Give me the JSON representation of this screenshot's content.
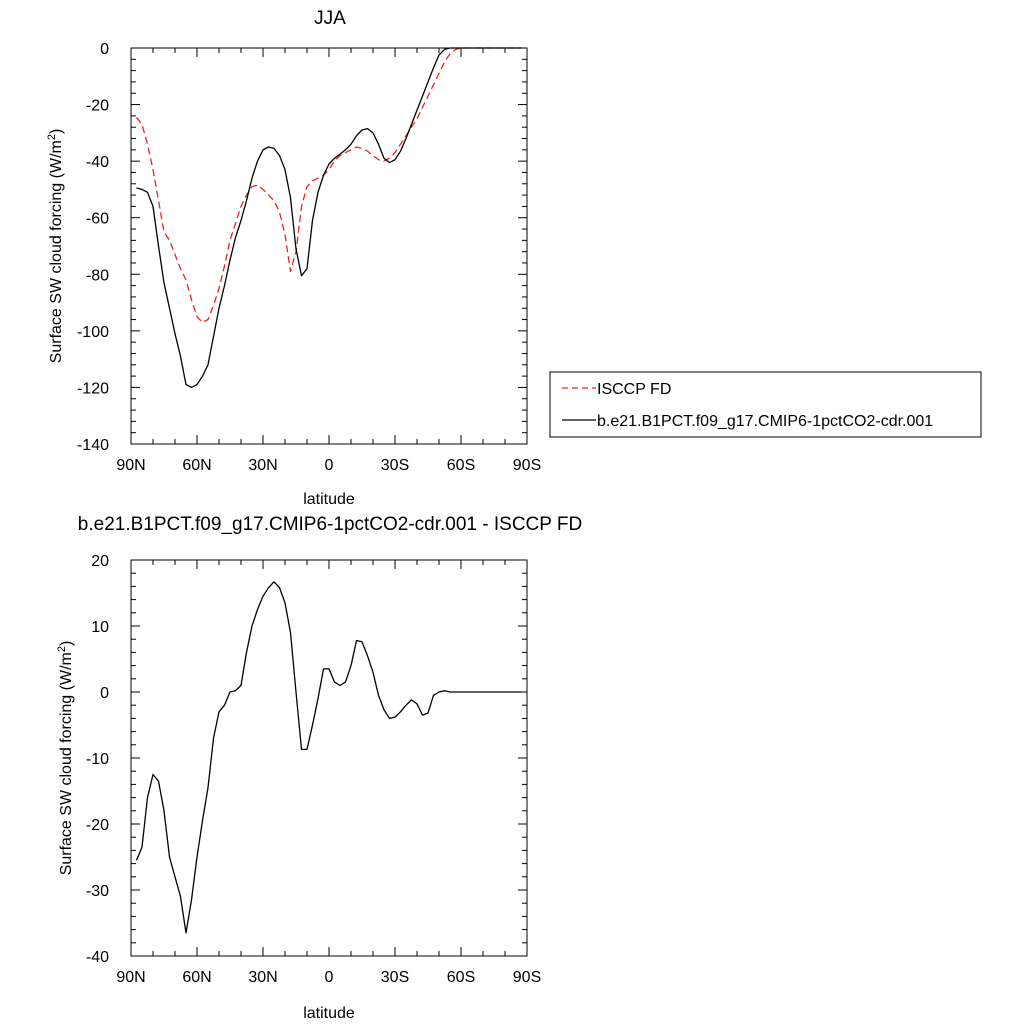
{
  "chart_data": [
    {
      "type": "line",
      "title": "JJA",
      "xlabel": "latitude",
      "ylabel": "Surface SW cloud forcing (W/m",
      "ylabel_sup": "2",
      "ylabel_tail": ")",
      "xlim": [
        90,
        -90
      ],
      "ylim": [
        -140,
        0
      ],
      "x_ticks": [
        {
          "value": 90,
          "label": "90N"
        },
        {
          "value": 60,
          "label": "60N"
        },
        {
          "value": 30,
          "label": "30N"
        },
        {
          "value": 0,
          "label": "0"
        },
        {
          "value": -30,
          "label": "30S"
        },
        {
          "value": -60,
          "label": "60S"
        },
        {
          "value": -90,
          "label": "90S"
        }
      ],
      "y_ticks": [
        0,
        -20,
        -40,
        -60,
        -80,
        -100,
        -120,
        -140
      ],
      "legend_position": "right",
      "series": [
        {
          "name": "ISCCP FD",
          "color": "#e8261d",
          "dash": true,
          "x": [
            87.5,
            85,
            82.5,
            80,
            77.5,
            75,
            72.5,
            70,
            67.5,
            65,
            62.5,
            60,
            57.5,
            55,
            52.5,
            50,
            47.5,
            45,
            42.5,
            40,
            37.5,
            35,
            32.5,
            30,
            27.5,
            25,
            22.5,
            20,
            17.5,
            15,
            12.5,
            10,
            7.5,
            5,
            2.5,
            0,
            -2.5,
            -5,
            -7.5,
            -10,
            -12.5,
            -15,
            -17.5,
            -20,
            -22.5,
            -25,
            -27.5,
            -30,
            -32.5,
            -35,
            -37.5,
            -40,
            -42.5,
            -45,
            -47.5,
            -50,
            -52.5,
            -55,
            -57.5,
            -60,
            -62.5,
            -65,
            -67.5,
            -70,
            -72.5,
            -75,
            -77.5,
            -80,
            -82.5,
            -85,
            -87.5
          ],
          "y": [
            -24.5,
            -27,
            -34,
            -43,
            -54,
            -65,
            -68,
            -73,
            -78,
            -82,
            -89,
            -95,
            -97,
            -96,
            -91,
            -85,
            -77,
            -68,
            -62,
            -56,
            -52,
            -49,
            -48.5,
            -50,
            -52,
            -54,
            -58,
            -66,
            -79,
            -72,
            -56,
            -49,
            -47,
            -46,
            -45,
            -43,
            -40,
            -38,
            -37,
            -36,
            -35,
            -35.5,
            -36.5,
            -38,
            -39.5,
            -40,
            -39,
            -37,
            -34,
            -31,
            -28,
            -25,
            -21,
            -17,
            -13,
            -9,
            -5,
            -2,
            -0.5,
            0,
            0,
            0,
            0,
            0,
            0,
            0,
            0,
            0,
            0,
            0,
            0
          ]
        },
        {
          "name": "b.e21.B1PCT.f09_g17.CMIP6-1pctCO2-cdr.001",
          "color": "#000000",
          "dash": false,
          "x": [
            87.5,
            85,
            82.5,
            80,
            77.5,
            75,
            72.5,
            70,
            67.5,
            65,
            62.5,
            60,
            57.5,
            55,
            52.5,
            50,
            47.5,
            45,
            42.5,
            40,
            37.5,
            35,
            32.5,
            30,
            27.5,
            25,
            22.5,
            20,
            17.5,
            15,
            12.5,
            10,
            7.5,
            5,
            2.5,
            0,
            -2.5,
            -5,
            -7.5,
            -10,
            -12.5,
            -15,
            -17.5,
            -20,
            -22.5,
            -25,
            -27.5,
            -30,
            -32.5,
            -35,
            -37.5,
            -40,
            -42.5,
            -45,
            -47.5,
            -50,
            -52.5,
            -55,
            -57.5,
            -60,
            -62.5,
            -65,
            -67.5,
            -70,
            -72.5,
            -75,
            -77.5,
            -80,
            -82.5,
            -85,
            -87.5
          ],
          "y": [
            -49.5,
            -50,
            -51,
            -56,
            -70,
            -83,
            -92,
            -101,
            -109,
            -119,
            -120,
            -119,
            -116,
            -112,
            -102,
            -92,
            -84,
            -75,
            -67,
            -61,
            -54,
            -46,
            -40,
            -36,
            -35,
            -35.5,
            -38,
            -43,
            -53,
            -71,
            -80.5,
            -78,
            -61,
            -51,
            -45,
            -41,
            -39,
            -37.5,
            -36,
            -34,
            -31,
            -29,
            -28.5,
            -30,
            -34,
            -39,
            -40.5,
            -39.5,
            -36.5,
            -32,
            -27,
            -22,
            -17,
            -12,
            -7,
            -2.5,
            -0.5,
            0,
            0,
            0,
            0,
            0,
            0,
            0,
            0,
            0,
            0,
            0,
            0,
            0,
            0
          ]
        }
      ]
    },
    {
      "type": "line",
      "title": "b.e21.B1PCT.f09_g17.CMIP6-1pctCO2-cdr.001 - ISCCP FD",
      "xlabel": "latitude",
      "ylabel": "Surface SW cloud forcing (W/m",
      "ylabel_sup": "2",
      "ylabel_tail": ")",
      "xlim": [
        90,
        -90
      ],
      "ylim": [
        -40,
        20
      ],
      "x_ticks": [
        {
          "value": 90,
          "label": "90N"
        },
        {
          "value": 60,
          "label": "60N"
        },
        {
          "value": 30,
          "label": "30N"
        },
        {
          "value": 0,
          "label": "0"
        },
        {
          "value": -30,
          "label": "30S"
        },
        {
          "value": -60,
          "label": "60S"
        },
        {
          "value": -90,
          "label": "90S"
        }
      ],
      "y_ticks": [
        20,
        10,
        0,
        -10,
        -20,
        -30,
        -40
      ],
      "series": [
        {
          "color": "#000000",
          "dash": false,
          "x": [
            87.5,
            85,
            82.5,
            80,
            77.5,
            75,
            72.5,
            70,
            67.5,
            65,
            62.5,
            60,
            57.5,
            55,
            52.5,
            50,
            47.5,
            45,
            42.5,
            40,
            37.5,
            35,
            32.5,
            30,
            27.5,
            25,
            22.5,
            20,
            17.5,
            15,
            12.5,
            10,
            7.5,
            5,
            2.5,
            0,
            -2.5,
            -5,
            -7.5,
            -10,
            -12.5,
            -15,
            -17.5,
            -20,
            -22.5,
            -25,
            -27.5,
            -30,
            -32.5,
            -35,
            -37.5,
            -40,
            -42.5,
            -45,
            -47.5,
            -50,
            -52.5,
            -55,
            -57.5,
            -60,
            -62.5,
            -65,
            -67.5,
            -70,
            -72.5,
            -75,
            -77.5,
            -80,
            -82.5,
            -85,
            -87.5
          ],
          "y": [
            -25.5,
            -23.5,
            -16,
            -12.5,
            -13.5,
            -18,
            -25,
            -28,
            -31,
            -36.5,
            -31.5,
            -25,
            -19.5,
            -14.5,
            -7,
            -3,
            -2,
            0,
            0.2,
            1,
            6,
            10,
            12.5,
            14.5,
            15.8,
            16.7,
            15.8,
            13.5,
            9,
            0,
            -8.7,
            -8.7,
            -5,
            -1,
            3.5,
            3.5,
            1.5,
            1,
            1.5,
            4,
            7.8,
            7.6,
            5.5,
            3,
            -0.5,
            -2.7,
            -4,
            -3.8,
            -3,
            -2,
            -1.2,
            -1.8,
            -3.5,
            -3.2,
            -0.5,
            0,
            0.2,
            0,
            0,
            0,
            0,
            0,
            0,
            0,
            0,
            0,
            0,
            0,
            0,
            0,
            0
          ]
        }
      ]
    }
  ]
}
